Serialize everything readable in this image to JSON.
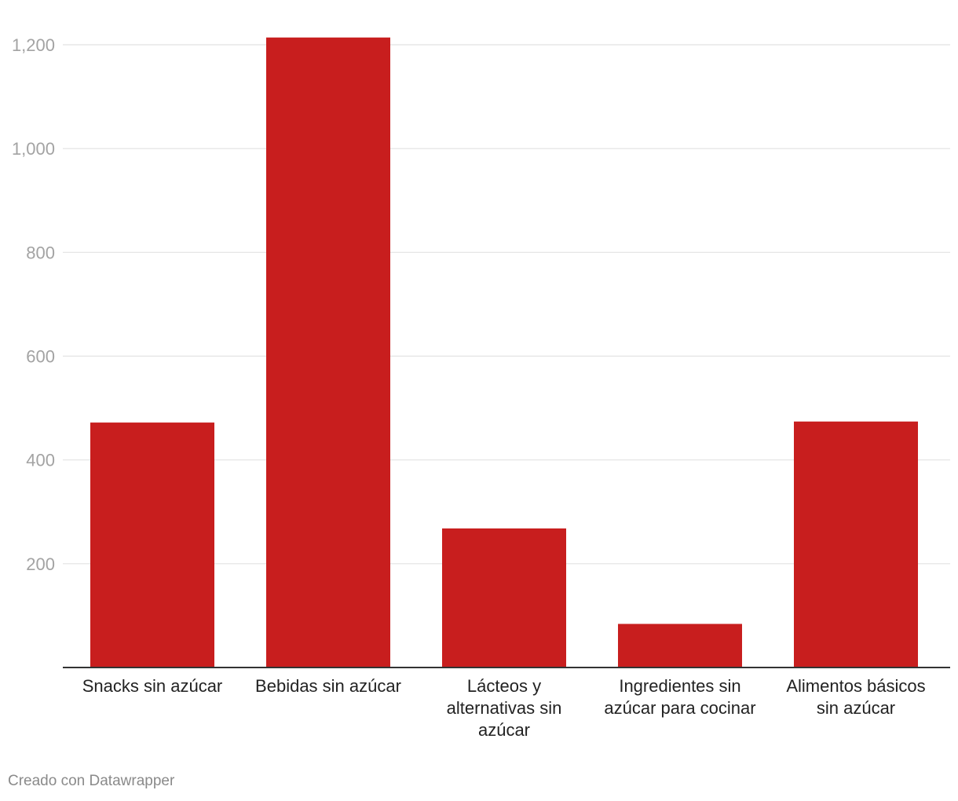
{
  "chart_data": {
    "type": "bar",
    "categories": [
      "Snacks sin azúcar",
      "Bebidas sin azúcar",
      "Lácteos y alternativas sin azúcar",
      "Ingredientes sin azúcar para cocinar",
      "Alimentos básicos sin azúcar"
    ],
    "values": [
      472,
      1214,
      268,
      84,
      474
    ],
    "yticks": [
      "200",
      "400",
      "600",
      "800",
      "1,000",
      "1,200"
    ],
    "ytick_values": [
      200,
      400,
      600,
      800,
      1000,
      1200
    ],
    "ylim": [
      0,
      1200
    ],
    "grid": true,
    "bar_color": "#c81e1e",
    "title": "",
    "xlabel": "",
    "ylabel": ""
  },
  "footer": {
    "credit": "Creado con Datawrapper"
  }
}
